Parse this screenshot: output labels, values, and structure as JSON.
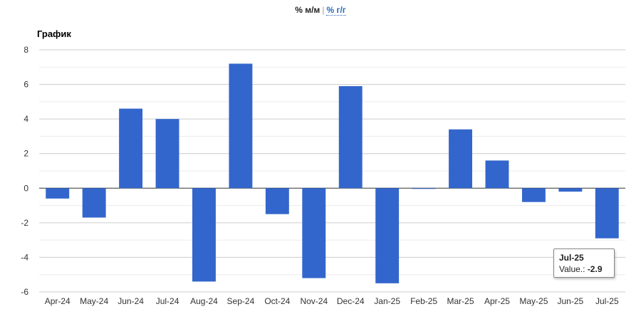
{
  "toggle": {
    "mom_label": "% м/м",
    "separator": "|",
    "yoy_label": "% г/г"
  },
  "chart_data": {
    "type": "bar",
    "title": "График",
    "xlabel": "",
    "ylabel": "",
    "categories": [
      "Apr-24",
      "May-24",
      "Jun-24",
      "Jul-24",
      "Aug-24",
      "Sep-24",
      "Oct-24",
      "Nov-24",
      "Dec-24",
      "Jan-25",
      "Feb-25",
      "Mar-25",
      "Apr-25",
      "May-25",
      "Jun-25",
      "Jul-25"
    ],
    "values": [
      -0.6,
      -1.7,
      4.6,
      4.0,
      -5.4,
      7.2,
      -1.5,
      -5.2,
      5.9,
      -5.5,
      0.0,
      3.4,
      1.6,
      -0.8,
      -0.2,
      -2.9
    ],
    "ylim": [
      -6,
      8
    ],
    "yticks": [
      8,
      6,
      4,
      2,
      0,
      -2,
      -4,
      -6
    ],
    "grid": true,
    "bar_color": "#3366cc",
    "tooltip": {
      "category": "Jul-25",
      "label": "Value.:",
      "value": "-2.9"
    }
  }
}
